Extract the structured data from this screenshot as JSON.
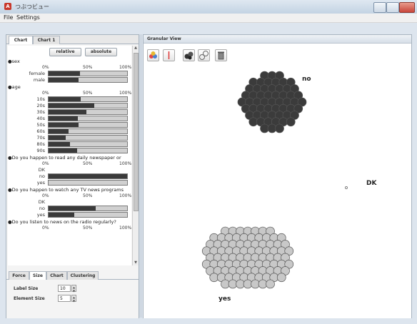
{
  "window": {
    "title": "つぶつビュー",
    "app_icon": "A"
  },
  "menu": {
    "items": [
      "File",
      "Settings"
    ]
  },
  "left_panel": {
    "tabs": [
      "Chart",
      "Chart 1"
    ],
    "buttons": {
      "relative": "relative",
      "absolute": "absolute"
    },
    "axis_ticks": [
      "0%",
      "50%",
      "100%"
    ],
    "questions": [
      {
        "label": "●sex",
        "categories": [
          {
            "name": "female",
            "value": 0.4
          },
          {
            "name": "male",
            "value": 0.38
          }
        ]
      },
      {
        "label": "●age",
        "categories": [
          {
            "name": "10s",
            "value": 0.41
          },
          {
            "name": "20s",
            "value": 0.58
          },
          {
            "name": "30s",
            "value": 0.48
          },
          {
            "name": "40s",
            "value": 0.37
          },
          {
            "name": "50s",
            "value": 0.38
          },
          {
            "name": "60s",
            "value": 0.25
          },
          {
            "name": "70s",
            "value": 0.22
          },
          {
            "name": "80s",
            "value": 0.27
          },
          {
            "name": "90s",
            "value": 0.36
          }
        ]
      },
      {
        "label": "●Do you happen to read any daily newspaper or",
        "categories": [
          {
            "name": "DK",
            "value": 0
          },
          {
            "name": "no",
            "value": 1.0
          },
          {
            "name": "yes",
            "value": 0
          }
        ]
      },
      {
        "label": "●Do you happen to watch any TV news programs",
        "categories": [
          {
            "name": "DK",
            "value": 0
          },
          {
            "name": "no",
            "value": 0.6
          },
          {
            "name": "yes",
            "value": 0.33
          }
        ]
      },
      {
        "label": "●Do you listen to news on the radio regularly?",
        "categories": []
      }
    ],
    "bottom_tabs": [
      "Force",
      "Size",
      "Chart",
      "Clustering"
    ],
    "label_size": {
      "label": "Label Size",
      "value": "10"
    },
    "element_size": {
      "label": "Element Size",
      "value": "5"
    }
  },
  "right_panel": {
    "header": "Granular View",
    "tools": [
      "cluster-color-icon",
      "line-icon",
      "group-icon",
      "link-icon",
      "trash-icon"
    ],
    "clusters": [
      {
        "label": "no",
        "fill": "#3b3b3b",
        "count": 63
      },
      {
        "label": "yes",
        "fill": "#c8c8c8",
        "count": 105
      },
      {
        "label": "DK",
        "fill": "#ffffff",
        "count": 1
      }
    ]
  }
}
